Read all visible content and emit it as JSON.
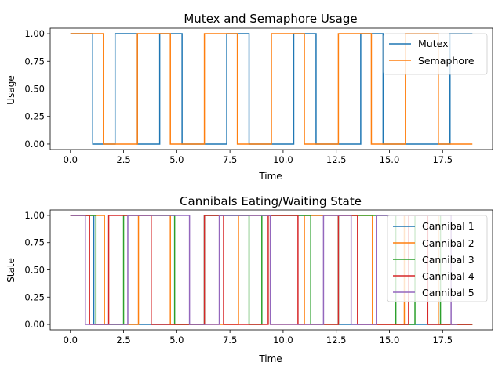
{
  "chart_data": [
    {
      "type": "line",
      "step": true,
      "title": "Mutex and Semaphore Usage",
      "xlabel": "Time",
      "ylabel": "Usage",
      "xlim": [
        -0.95,
        19.85
      ],
      "ylim": [
        -0.05,
        1.05
      ],
      "xticks": [
        0.0,
        2.5,
        5.0,
        7.5,
        10.0,
        12.5,
        15.0,
        17.5
      ],
      "xtick_labels": [
        "0.0",
        "2.5",
        "5.0",
        "7.5",
        "10.0",
        "12.5",
        "15.0",
        "17.5"
      ],
      "yticks": [
        0.0,
        0.25,
        0.5,
        0.75,
        1.0
      ],
      "ytick_labels": [
        "0.00",
        "0.25",
        "0.50",
        "0.75",
        "1.00"
      ],
      "legend_position": "top-right",
      "series": [
        {
          "name": "Mutex",
          "color": "#1f77b4",
          "x": [
            0,
            1.05,
            1.05,
            2.1,
            2.1,
            3.15,
            3.15,
            4.2,
            4.2,
            5.25,
            5.25,
            7.35,
            7.35,
            8.4,
            8.4,
            10.5,
            10.5,
            11.55,
            11.55,
            13.65,
            13.65,
            14.7,
            14.7,
            17.85,
            17.85,
            18.9
          ],
          "y": [
            1,
            1,
            0,
            0,
            1,
            1,
            0,
            0,
            1,
            1,
            0,
            0,
            1,
            1,
            0,
            0,
            1,
            1,
            0,
            0,
            1,
            1,
            0,
            0,
            1,
            1
          ]
        },
        {
          "name": "Semaphore",
          "color": "#ff7f0e",
          "x": [
            0,
            1.55,
            1.55,
            3.15,
            3.15,
            4.7,
            4.7,
            6.3,
            6.3,
            7.85,
            7.85,
            9.45,
            9.45,
            11.0,
            11.0,
            12.6,
            12.6,
            14.15,
            14.15,
            15.75,
            15.75,
            17.3,
            17.3,
            18.9
          ],
          "y": [
            1,
            1,
            0,
            0,
            1,
            1,
            0,
            0,
            1,
            1,
            0,
            0,
            1,
            1,
            0,
            0,
            1,
            1,
            0,
            0,
            1,
            1,
            0,
            0
          ]
        }
      ]
    },
    {
      "type": "line",
      "step": true,
      "title": "Cannibals Eating/Waiting State",
      "xlabel": "Time",
      "ylabel": "State",
      "xlim": [
        -0.95,
        19.85
      ],
      "ylim": [
        -0.05,
        1.05
      ],
      "xticks": [
        0.0,
        2.5,
        5.0,
        7.5,
        10.0,
        12.5,
        15.0,
        17.5
      ],
      "xtick_labels": [
        "0.0",
        "2.5",
        "5.0",
        "7.5",
        "10.0",
        "12.5",
        "15.0",
        "17.5"
      ],
      "yticks": [
        0.0,
        0.25,
        0.5,
        0.75,
        1.0
      ],
      "ytick_labels": [
        "0.00",
        "0.25",
        "0.50",
        "0.75",
        "1.00"
      ],
      "legend_position": "top-right",
      "series": [
        {
          "name": "Cannibal 1",
          "color": "#1f77b4",
          "x": [
            0,
            1.1,
            1.1,
            6.3,
            6.3,
            12.6,
            12.6,
            18.9
          ],
          "y": [
            1,
            1,
            0,
            0,
            1,
            1,
            0,
            0
          ]
        },
        {
          "name": "Cannibal 2",
          "color": "#ff7f0e",
          "x": [
            0,
            1.6,
            1.6,
            3.2,
            3.2,
            4.7,
            4.7,
            7.9,
            7.9,
            9.4,
            9.4,
            11.0,
            11.0,
            14.2,
            14.2,
            15.7,
            15.7,
            17.3,
            17.3,
            18.9
          ],
          "y": [
            1,
            1,
            0,
            0,
            1,
            1,
            0,
            0,
            1,
            1,
            0,
            0,
            1,
            1,
            0,
            0,
            1,
            1,
            0,
            0
          ]
        },
        {
          "name": "Cannibal 3",
          "color": "#2ca02c",
          "x": [
            0,
            1.2,
            1.2,
            2.5,
            2.5,
            4.9,
            4.9,
            6.3,
            6.3,
            8.4,
            8.4,
            9.0,
            9.0,
            11.3,
            11.3,
            12.6,
            12.6,
            15.3,
            15.3,
            16.2,
            16.2,
            17.4,
            17.4,
            18.9
          ],
          "y": [
            1,
            1,
            0,
            0,
            1,
            1,
            0,
            0,
            1,
            1,
            0,
            0,
            1,
            1,
            0,
            0,
            1,
            1,
            0,
            0,
            1,
            1,
            0,
            0
          ]
        },
        {
          "name": "Cannibal 4",
          "color": "#d62728",
          "x": [
            0,
            0.9,
            0.9,
            1.8,
            1.8,
            3.8,
            3.8,
            6.3,
            6.3,
            7.2,
            7.2,
            9.3,
            9.3,
            10.7,
            10.7,
            12.6,
            12.6,
            13.5,
            13.5,
            15.9,
            15.9,
            16.8,
            16.8,
            18.9
          ],
          "y": [
            1,
            1,
            0,
            0,
            1,
            1,
            0,
            0,
            1,
            1,
            0,
            0,
            1,
            1,
            0,
            0,
            1,
            1,
            0,
            0,
            1,
            1,
            0,
            0
          ]
        },
        {
          "name": "Cannibal 5",
          "color": "#9467bd",
          "x": [
            0,
            0.7,
            0.7,
            2.7,
            2.7,
            5.6,
            5.6,
            7.0,
            7.0,
            9.4,
            9.4,
            11.9,
            11.9,
            13.2,
            13.2,
            14.4,
            14.4,
            17.9,
            17.9,
            18.2
          ],
          "y": [
            1,
            1,
            0,
            0,
            1,
            1,
            0,
            0,
            1,
            1,
            0,
            0,
            1,
            1,
            0,
            0,
            1,
            1,
            0,
            0
          ]
        }
      ]
    }
  ]
}
